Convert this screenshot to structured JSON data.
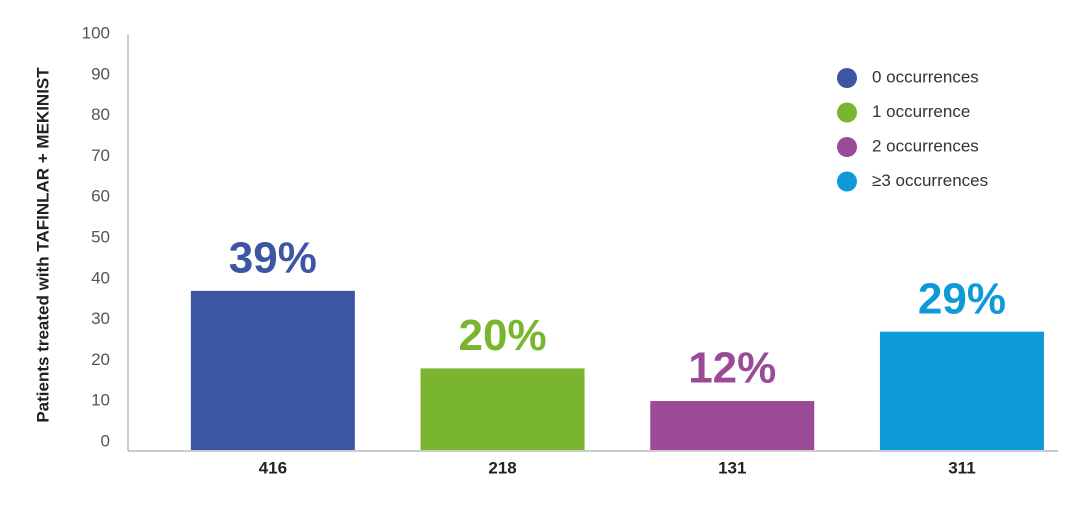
{
  "chart_data": {
    "type": "bar",
    "y_label": "Patients treated with TAFINLAR + MEKINIST",
    "categories": [
      "416",
      "218",
      "131",
      "311"
    ],
    "values": [
      39,
      20,
      12,
      29
    ],
    "value_labels": [
      "39%",
      "20%",
      "12%",
      "29%"
    ],
    "colors": [
      "#3d56a4",
      "#7ab530",
      "#9a4a97",
      "#0e9ad8"
    ],
    "legend": [
      "0 occurrences",
      "1 occurrence",
      "2 occurrences",
      "≥3 occurrences"
    ],
    "ylim": [
      0,
      100
    ],
    "yticks": [
      0,
      10,
      20,
      30,
      40,
      50,
      60,
      70,
      80,
      90,
      100
    ]
  }
}
